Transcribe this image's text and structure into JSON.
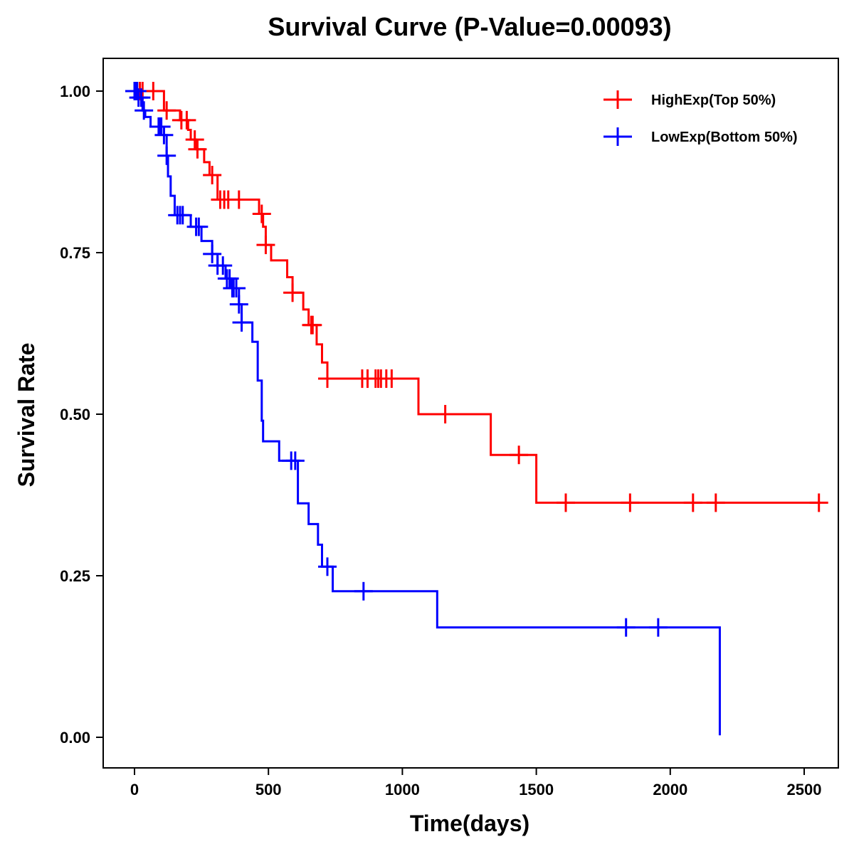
{
  "chart_data": {
    "type": "line",
    "subtype": "kaplan-meier-step",
    "title": "Survival Curve (P-Value=0.00093)",
    "xlabel": "Time(days)",
    "ylabel": "Survival Rate",
    "xlim": [
      -110,
      2610
    ],
    "ylim": [
      -0.05,
      1.05
    ],
    "x_ticks": [
      0,
      500,
      1000,
      1500,
      2000,
      2500
    ],
    "x_tick_labels": [
      "0",
      "500",
      "1000",
      "1500",
      "2000",
      "2500"
    ],
    "y_ticks": [
      0,
      0.25,
      0.5,
      0.75,
      1.0
    ],
    "y_tick_labels": [
      "0.00",
      "0.25",
      "0.50",
      "0.75",
      "1.00"
    ],
    "grid": false,
    "legend_position": "top-right",
    "series": [
      {
        "name": "HighExp(Top 50%)",
        "color": "#ff0000",
        "steps": [
          [
            0,
            1.0
          ],
          [
            110,
            0.97
          ],
          [
            170,
            0.955
          ],
          [
            200,
            0.94
          ],
          [
            210,
            0.925
          ],
          [
            230,
            0.91
          ],
          [
            260,
            0.89
          ],
          [
            280,
            0.87
          ],
          [
            310,
            0.832
          ],
          [
            465,
            0.81
          ],
          [
            480,
            0.79
          ],
          [
            490,
            0.762
          ],
          [
            510,
            0.738
          ],
          [
            570,
            0.712
          ],
          [
            590,
            0.688
          ],
          [
            630,
            0.662
          ],
          [
            650,
            0.638
          ],
          [
            680,
            0.608
          ],
          [
            700,
            0.58
          ],
          [
            720,
            0.555
          ],
          [
            1060,
            0.5
          ],
          [
            1330,
            0.437
          ],
          [
            1500,
            0.363
          ],
          [
            2560,
            0.363
          ]
        ],
        "censor_times": [
          20,
          30,
          70,
          120,
          175,
          195,
          225,
          235,
          290,
          320,
          335,
          350,
          390,
          475,
          490,
          590,
          660,
          665,
          720,
          850,
          870,
          900,
          910,
          920,
          940,
          960,
          1160,
          1435,
          1610,
          1850,
          2085,
          2170,
          2555
        ]
      },
      {
        "name": "LowExp(Bottom 50%)",
        "color": "#0000ff",
        "steps": [
          [
            0,
            1.0
          ],
          [
            15,
            0.99
          ],
          [
            30,
            0.97
          ],
          [
            40,
            0.96
          ],
          [
            60,
            0.945
          ],
          [
            110,
            0.932
          ],
          [
            120,
            0.9
          ],
          [
            125,
            0.868
          ],
          [
            135,
            0.838
          ],
          [
            150,
            0.808
          ],
          [
            210,
            0.79
          ],
          [
            250,
            0.768
          ],
          [
            290,
            0.748
          ],
          [
            310,
            0.73
          ],
          [
            340,
            0.71
          ],
          [
            360,
            0.695
          ],
          [
            390,
            0.67
          ],
          [
            400,
            0.642
          ],
          [
            440,
            0.612
          ],
          [
            460,
            0.552
          ],
          [
            475,
            0.49
          ],
          [
            480,
            0.458
          ],
          [
            540,
            0.428
          ],
          [
            610,
            0.362
          ],
          [
            650,
            0.33
          ],
          [
            685,
            0.298
          ],
          [
            700,
            0.264
          ],
          [
            740,
            0.226
          ],
          [
            1130,
            0.17
          ],
          [
            2180,
            0.17
          ],
          [
            2185,
            0.003
          ]
        ],
        "censor_times": [
          0,
          5,
          10,
          15,
          25,
          35,
          90,
          95,
          100,
          110,
          120,
          160,
          170,
          180,
          230,
          240,
          290,
          310,
          330,
          345,
          355,
          365,
          370,
          380,
          390,
          400,
          585,
          600,
          720,
          855,
          1835,
          1955
        ]
      }
    ]
  }
}
